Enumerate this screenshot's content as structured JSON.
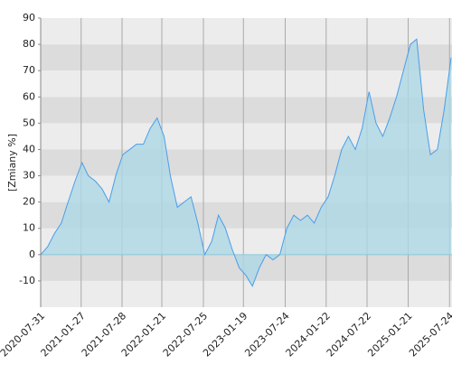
{
  "chart_data": {
    "type": "area",
    "y_label": "[Zmiany %]",
    "x": [
      "2020-07-31",
      "2020-08-31",
      "2020-09-30",
      "2020-10-31",
      "2020-11-30",
      "2020-12-31",
      "2021-01-31",
      "2021-02-28",
      "2021-03-31",
      "2021-04-30",
      "2021-05-31",
      "2021-06-30",
      "2021-07-31",
      "2021-08-31",
      "2021-09-30",
      "2021-10-31",
      "2021-11-30",
      "2021-12-31",
      "2022-01-31",
      "2022-02-28",
      "2022-03-31",
      "2022-04-30",
      "2022-05-31",
      "2022-06-30",
      "2022-07-31",
      "2022-08-31",
      "2022-09-30",
      "2022-10-31",
      "2022-11-30",
      "2022-12-31",
      "2023-01-31",
      "2023-02-28",
      "2023-03-31",
      "2023-04-30",
      "2023-05-31",
      "2023-06-30",
      "2023-07-31",
      "2023-08-31",
      "2023-09-30",
      "2023-10-31",
      "2023-11-30",
      "2023-12-31",
      "2024-01-31",
      "2024-02-29",
      "2024-03-31",
      "2024-04-30",
      "2024-05-31",
      "2024-06-30",
      "2024-07-31",
      "2024-08-31",
      "2024-09-30",
      "2024-10-31",
      "2024-11-30",
      "2024-12-31",
      "2025-01-31",
      "2025-02-28",
      "2025-03-31",
      "2025-04-30",
      "2025-05-31",
      "2025-06-30",
      "2025-07-31"
    ],
    "values": [
      0,
      3,
      8,
      12,
      20,
      28,
      35,
      30,
      28,
      25,
      20,
      30,
      38,
      40,
      42,
      42,
      48,
      52,
      45,
      30,
      18,
      20,
      22,
      12,
      0,
      5,
      15,
      10,
      2,
      -5,
      -8,
      -12,
      -5,
      0,
      -2,
      0,
      10,
      15,
      13,
      15,
      12,
      18,
      22,
      30,
      40,
      45,
      40,
      48,
      62,
      50,
      45,
      52,
      60,
      70,
      80,
      82,
      55,
      38,
      40,
      55,
      75
    ],
    "color": "#4a9ee8",
    "fill": "#add8e6",
    "xlim": [
      "2020-07-31",
      "2025-08-04"
    ],
    "xticks": [
      "2020-07-31",
      "2021-01-27",
      "2021-07-28",
      "2022-01-21",
      "2022-07-25",
      "2023-01-19",
      "2023-07-24",
      "2024-01-22",
      "2024-07-22",
      "2025-01-21",
      "2025-07-24"
    ],
    "ylim": [
      -20,
      90
    ],
    "yticks": [
      -10,
      0,
      10,
      20,
      30,
      40,
      50,
      60,
      70,
      80,
      90
    ],
    "grid": true
  }
}
